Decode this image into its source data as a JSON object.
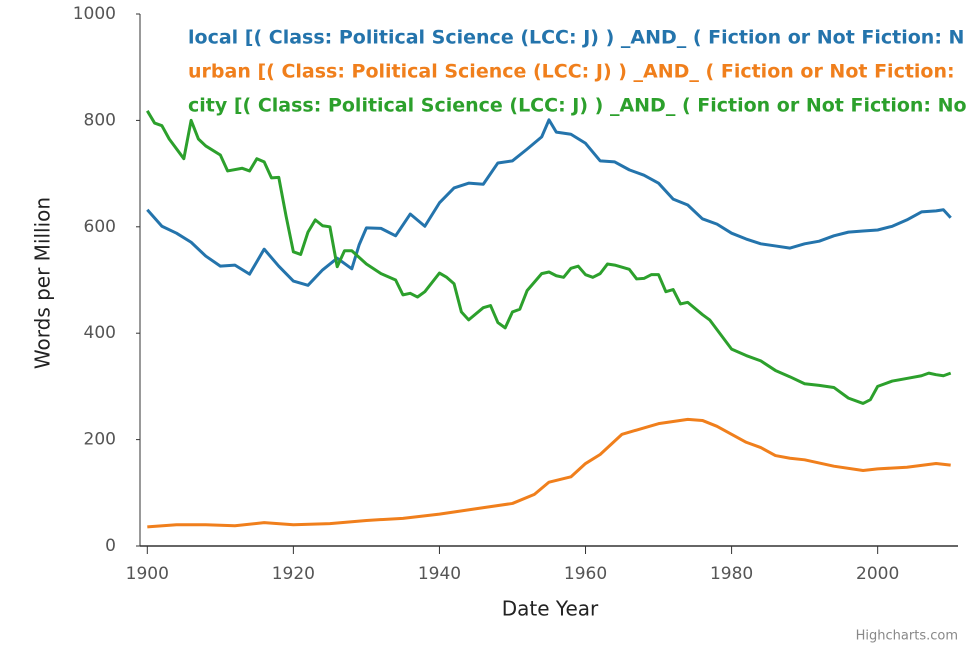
{
  "chart_data": {
    "type": "line",
    "xlabel": "Date Year",
    "ylabel": "Words per Million",
    "credit": "Highcharts.com",
    "xlim": [
      1899,
      2011
    ],
    "xticks": [
      1900,
      1920,
      1940,
      1960,
      1980,
      2000
    ],
    "ylim": [
      0,
      1000
    ],
    "yticks": [
      0,
      200,
      400,
      600,
      800,
      1000
    ],
    "series": [
      {
        "name": "local [( Class: Political Science (LCC: J) ) _AND_ ( Fiction or Not Fiction: N",
        "color": "#2474ac",
        "x": [
          1900,
          1902,
          1904,
          1906,
          1908,
          1910,
          1912,
          1914,
          1916,
          1918,
          1920,
          1922,
          1924,
          1926,
          1928,
          1929,
          1930,
          1932,
          1934,
          1936,
          1938,
          1940,
          1942,
          1944,
          1946,
          1948,
          1950,
          1952,
          1954,
          1955,
          1956,
          1958,
          1960,
          1962,
          1964,
          1966,
          1968,
          1970,
          1972,
          1974,
          1976,
          1978,
          1980,
          1982,
          1984,
          1986,
          1988,
          1990,
          1992,
          1994,
          1996,
          1998,
          2000,
          2002,
          2004,
          2006,
          2008,
          2009,
          2010
        ],
        "values": [
          632,
          601,
          588,
          571,
          545,
          526,
          528,
          511,
          558,
          526,
          498,
          490,
          519,
          541,
          521,
          566,
          598,
          597,
          583,
          624,
          601,
          645,
          673,
          682,
          680,
          720,
          724,
          746,
          769,
          801,
          778,
          774,
          757,
          724,
          722,
          707,
          697,
          682,
          652,
          641,
          615,
          605,
          588,
          577,
          568,
          564,
          560,
          568,
          573,
          583,
          590,
          592,
          594,
          601,
          613,
          628,
          630,
          632,
          617
        ]
      },
      {
        "name": "urban [( Class: Political Science (LCC: J) ) _AND_ ( Fiction or Not Fiction:",
        "color": "#f07f1c",
        "x": [
          1900,
          1904,
          1908,
          1912,
          1916,
          1920,
          1925,
          1930,
          1935,
          1940,
          1945,
          1950,
          1953,
          1955,
          1958,
          1960,
          1962,
          1965,
          1968,
          1970,
          1974,
          1976,
          1978,
          1980,
          1982,
          1984,
          1986,
          1988,
          1990,
          1994,
          1998,
          2000,
          2004,
          2008,
          2010
        ],
        "values": [
          36,
          40,
          40,
          38,
          44,
          40,
          42,
          48,
          52,
          60,
          70,
          80,
          97,
          120,
          130,
          155,
          172,
          210,
          222,
          230,
          238,
          236,
          225,
          210,
          195,
          185,
          170,
          165,
          162,
          150,
          142,
          145,
          148,
          155,
          152
        ]
      },
      {
        "name": "city [( Class: Political Science (LCC: J) ) _AND_ ( Fiction or Not Fiction: No",
        "color": "#2ca02c",
        "x": [
          1900,
          1901,
          1902,
          1903,
          1905,
          1906,
          1907,
          1908,
          1910,
          1911,
          1913,
          1914,
          1915,
          1916,
          1917,
          1918,
          1919,
          1920,
          1921,
          1922,
          1923,
          1924,
          1925,
          1926,
          1927,
          1928,
          1930,
          1932,
          1934,
          1935,
          1936,
          1937,
          1938,
          1940,
          1941,
          1942,
          1943,
          1944,
          1946,
          1947,
          1948,
          1949,
          1950,
          1951,
          1952,
          1954,
          1955,
          1956,
          1957,
          1958,
          1959,
          1960,
          1961,
          1962,
          1963,
          1964,
          1966,
          1967,
          1968,
          1969,
          1970,
          1971,
          1972,
          1973,
          1974,
          1976,
          1977,
          1980,
          1982,
          1984,
          1986,
          1988,
          1990,
          1992,
          1994,
          1996,
          1998,
          1999,
          2000,
          2002,
          2004,
          2006,
          2007,
          2008,
          2009,
          2010
        ],
        "values": [
          818,
          795,
          790,
          765,
          728,
          800,
          765,
          752,
          735,
          705,
          710,
          705,
          728,
          722,
          692,
          693,
          620,
          553,
          548,
          590,
          613,
          602,
          600,
          525,
          555,
          555,
          530,
          512,
          500,
          472,
          475,
          468,
          478,
          513,
          505,
          493,
          440,
          425,
          448,
          452,
          420,
          410,
          440,
          445,
          480,
          512,
          515,
          508,
          505,
          522,
          526,
          510,
          505,
          512,
          530,
          528,
          520,
          502,
          503,
          510,
          510,
          478,
          482,
          455,
          458,
          435,
          425,
          370,
          358,
          348,
          330,
          318,
          305,
          302,
          298,
          278,
          268,
          275,
          300,
          310,
          315,
          320,
          325,
          322,
          320,
          325
        ]
      }
    ]
  }
}
